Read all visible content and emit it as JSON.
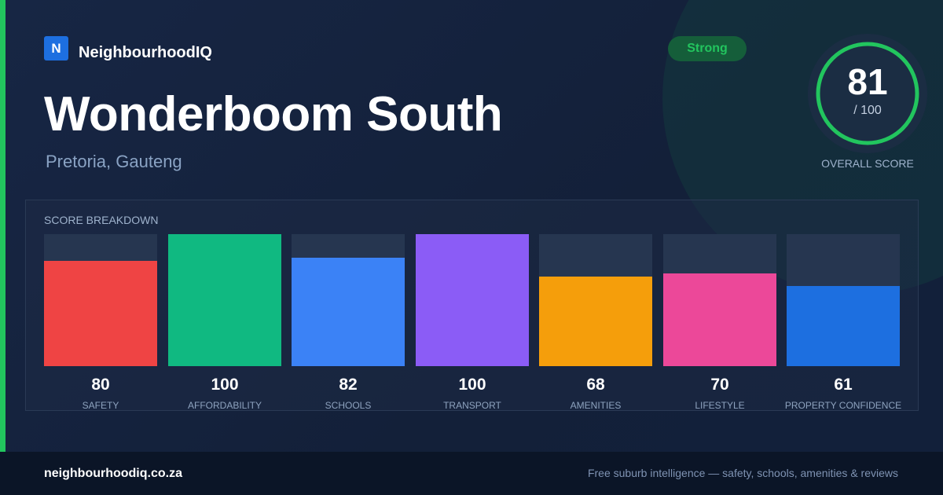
{
  "brand": {
    "logo_letter": "N",
    "name": "NeighbourhoodIQ"
  },
  "badge": {
    "label": "Strong",
    "color": "#22c55e"
  },
  "suburb": {
    "title": "Wonderboom South",
    "subtitle": "Pretoria, Gauteng"
  },
  "overall": {
    "score": "81",
    "max_label": "/ 100",
    "label": "OVERALL SCORE",
    "value": 81,
    "max": 100,
    "color": "#22c55e"
  },
  "breakdown": {
    "label": "SCORE BREAKDOWN",
    "items": [
      {
        "name": "SAFETY",
        "value": "80",
        "score": 80,
        "color": "#ef4444"
      },
      {
        "name": "AFFORDABILITY",
        "value": "100",
        "score": 100,
        "color": "#10b981"
      },
      {
        "name": "SCHOOLS",
        "value": "82",
        "score": 82,
        "color": "#3b82f6"
      },
      {
        "name": "TRANSPORT",
        "value": "100",
        "score": 100,
        "color": "#8b5cf6"
      },
      {
        "name": "AMENITIES",
        "value": "68",
        "score": 68,
        "color": "#f59e0b"
      },
      {
        "name": "LIFESTYLE",
        "value": "70",
        "score": 70,
        "color": "#ec4899"
      },
      {
        "name": "PROPERTY CONFIDENCE",
        "value": "61",
        "score": 61,
        "color": "#1d6fe0"
      }
    ]
  },
  "footer": {
    "url": "neighbourhoodiq.co.za",
    "tagline": "Free suburb intelligence — safety, schools, amenities & reviews"
  }
}
